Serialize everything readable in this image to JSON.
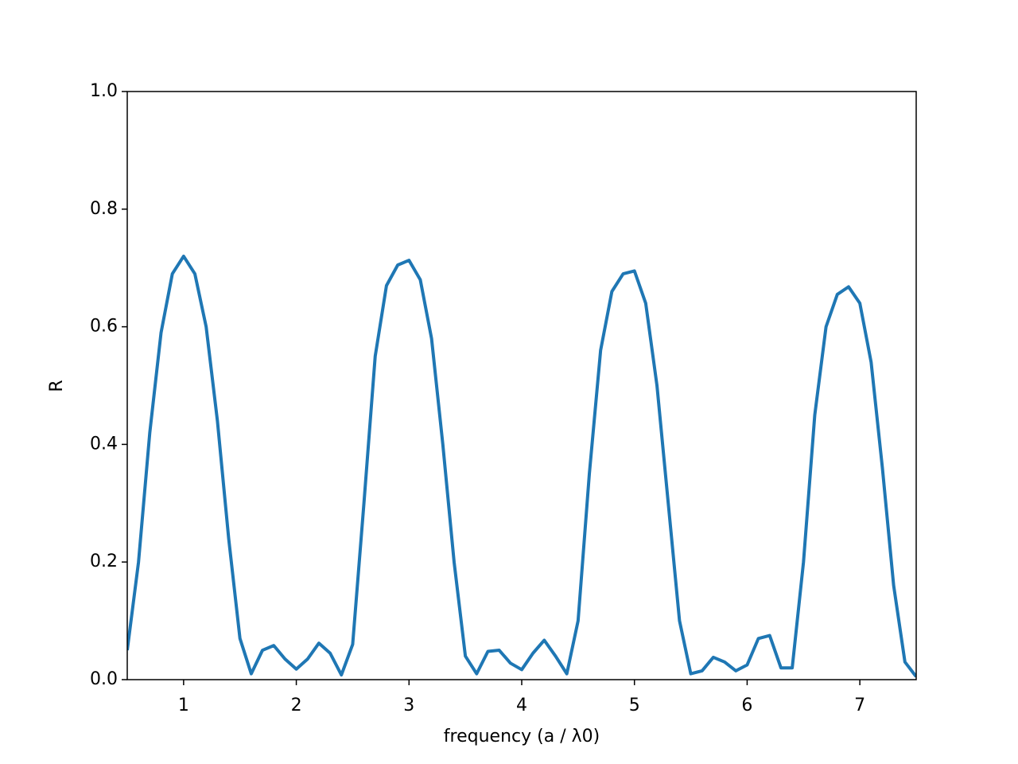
{
  "chart_data": {
    "type": "line",
    "x_label": "frequency (a / λ0)",
    "y_label": "R",
    "x": [
      0.5,
      0.6,
      0.7,
      0.8,
      0.9,
      1.0,
      1.1,
      1.2,
      1.3,
      1.4,
      1.5,
      1.6,
      1.7,
      1.8,
      1.9,
      2.0,
      2.1,
      2.2,
      2.3,
      2.4,
      2.5,
      2.6,
      2.7,
      2.8,
      2.9,
      3.0,
      3.1,
      3.2,
      3.3,
      3.4,
      3.5,
      3.6,
      3.7,
      3.8,
      3.9,
      4.0,
      4.1,
      4.2,
      4.3,
      4.4,
      4.5,
      4.6,
      4.7,
      4.8,
      4.9,
      5.0,
      5.1,
      5.2,
      5.3,
      5.4,
      5.5,
      5.6,
      5.7,
      5.8,
      5.9,
      6.0,
      6.1,
      6.2,
      6.3,
      6.4,
      6.5,
      6.6,
      6.7,
      6.8,
      6.9,
      7.0,
      7.1,
      7.2,
      7.3,
      7.4,
      7.5
    ],
    "series": [
      {
        "color": "#1f77b4",
        "values": [
          0.05,
          0.2,
          0.42,
          0.59,
          0.69,
          0.72,
          0.69,
          0.6,
          0.44,
          0.24,
          0.07,
          0.01,
          0.05,
          0.058,
          0.035,
          0.018,
          0.035,
          0.062,
          0.045,
          0.008,
          0.06,
          0.3,
          0.55,
          0.67,
          0.705,
          0.713,
          0.68,
          0.58,
          0.4,
          0.2,
          0.04,
          0.01,
          0.048,
          0.05,
          0.028,
          0.017,
          0.045,
          0.067,
          0.04,
          0.01,
          0.1,
          0.35,
          0.56,
          0.66,
          0.69,
          0.695,
          0.64,
          0.5,
          0.3,
          0.1,
          0.01,
          0.015,
          0.038,
          0.03,
          0.015,
          0.025,
          0.07,
          0.075,
          0.02,
          0.02,
          0.2,
          0.45,
          0.6,
          0.655,
          0.668,
          0.64,
          0.54,
          0.36,
          0.16,
          0.03,
          0.005
        ]
      }
    ],
    "xlim": [
      0.5,
      7.5
    ],
    "xticks": [
      1,
      2,
      3,
      4,
      5,
      6,
      7
    ],
    "ylim": [
      0,
      1
    ],
    "yticks": [
      {
        "value": 0,
        "label": "0.0"
      },
      0.2,
      0.4,
      0.6,
      0.8,
      {
        "value": 1,
        "label": "1.0"
      }
    ],
    "grid": false
  }
}
